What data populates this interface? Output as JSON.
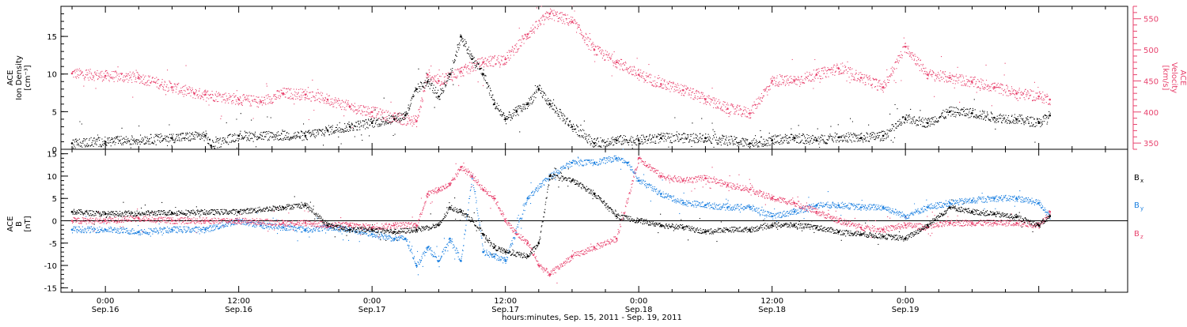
{
  "chart_data": [
    {
      "type": "scatter",
      "panel": "top",
      "left_axis": {
        "title_lines": [
          "ACE",
          "Ion Density",
          "[cm⁻³]"
        ],
        "ylim": [
          0,
          19
        ],
        "ticks": [
          0,
          5,
          10,
          15
        ],
        "tick_labels": [
          "0",
          "5",
          "10",
          "15"
        ]
      },
      "right_axis": {
        "title_lines": [
          "ACE",
          "Velocity",
          "[km/s]"
        ],
        "ylim": [
          340,
          570
        ],
        "ticks": [
          350,
          400,
          450,
          500,
          550
        ],
        "tick_labels": [
          "350",
          "400",
          "450",
          "500",
          "550"
        ]
      },
      "colors": {
        "density": "#000000",
        "velocity": "#e8436e"
      },
      "series": [
        {
          "key": "density",
          "axis": "left",
          "x_hours": [
            -3,
            0,
            6,
            9,
            9.5,
            12,
            18,
            20,
            22,
            24,
            26,
            27,
            28,
            29,
            30,
            31,
            32,
            33,
            34,
            35,
            36,
            37,
            38,
            39,
            40,
            42,
            44,
            46,
            48,
            50,
            54,
            58,
            60,
            62,
            64,
            66,
            68,
            70,
            72,
            74,
            76,
            78,
            80,
            82,
            84,
            85
          ],
          "values": [
            0.8,
            1,
            1.5,
            1.8,
            0.5,
            1.8,
            1.8,
            2.5,
            3,
            3.5,
            4,
            4.5,
            8,
            9,
            7,
            10,
            15,
            12,
            10,
            6,
            4,
            5,
            6,
            8,
            6,
            3,
            0.8,
            1.2,
            1.2,
            1.5,
            1.5,
            0.8,
            1.2,
            1.5,
            1.2,
            1.6,
            1.5,
            1.8,
            4,
            3.5,
            5,
            4.8,
            4.2,
            4,
            3.5,
            4.5
          ]
        },
        {
          "key": "velocity",
          "axis": "right",
          "x_hours": [
            -3,
            0,
            3,
            6,
            8,
            9,
            12,
            14,
            16,
            18,
            20,
            22,
            24,
            26,
            28,
            29,
            30,
            32,
            34,
            36,
            38,
            40,
            42,
            44,
            46,
            48,
            50,
            52,
            54,
            56,
            58,
            60,
            62,
            64,
            66,
            68,
            70,
            72,
            74,
            76,
            78,
            80,
            82,
            84,
            85
          ],
          "values": [
            462,
            458,
            455,
            440,
            430,
            428,
            420,
            416,
            430,
            428,
            420,
            408,
            400,
            390,
            385,
            460,
            450,
            465,
            480,
            485,
            525,
            558,
            545,
            500,
            480,
            460,
            445,
            435,
            420,
            405,
            398,
            450,
            450,
            460,
            470,
            455,
            440,
            505,
            460,
            455,
            448,
            440,
            430,
            425,
            420
          ]
        }
      ]
    },
    {
      "type": "scatter",
      "panel": "bottom",
      "left_axis": {
        "title_lines": [
          "ACE",
          "B",
          "[nT]"
        ],
        "ylim": [
          -16,
          16
        ],
        "ticks": [
          -15,
          -10,
          -5,
          0,
          5,
          10,
          15
        ],
        "tick_labels": [
          "-15",
          "-10",
          "-5",
          "0",
          "5",
          "10",
          "15"
        ]
      },
      "zero_line": 0,
      "legend": {
        "placement": "right",
        "items": [
          {
            "label": "B",
            "sub": "x",
            "color": "#000000"
          },
          {
            "label": "B",
            "sub": "y",
            "color": "#1a7fe0"
          },
          {
            "label": "B",
            "sub": "z",
            "color": "#e8436e"
          }
        ]
      },
      "series": [
        {
          "key": "bx",
          "color": "#000000",
          "x_hours": [
            -3,
            0,
            6,
            12,
            16,
            18,
            20,
            22,
            24,
            26,
            28,
            30,
            31,
            32,
            33,
            34,
            35,
            36,
            38,
            39,
            40,
            42,
            44,
            46,
            48,
            50,
            52,
            54,
            56,
            58,
            60,
            62,
            64,
            66,
            68,
            70,
            72,
            74,
            76,
            78,
            80,
            82,
            84,
            85
          ],
          "values": [
            2,
            1.5,
            1.8,
            2,
            3,
            3.5,
            -1,
            -2,
            -2,
            -2.5,
            -2,
            -1,
            3,
            2,
            0,
            -3,
            -6,
            -7,
            -8,
            -5,
            10,
            9,
            6,
            1,
            0,
            -1,
            -1.5,
            -2.5,
            -2,
            -2,
            -1,
            -1,
            -1.5,
            -2.5,
            -3,
            -3.5,
            -4,
            -1,
            3,
            2,
            1.5,
            0.8,
            -1,
            1
          ]
        },
        {
          "key": "by",
          "color": "#1a7fe0",
          "x_hours": [
            -3,
            0,
            3,
            6,
            9,
            12,
            14,
            16,
            18,
            20,
            22,
            24,
            26,
            27,
            28,
            29,
            30,
            31,
            32,
            33,
            34,
            35,
            36,
            38,
            40,
            42,
            44,
            46,
            47,
            48,
            50,
            52,
            54,
            56,
            58,
            60,
            62,
            64,
            66,
            68,
            70,
            72,
            74,
            76,
            78,
            80,
            82,
            84,
            85
          ],
          "values": [
            -2,
            -2,
            -2.5,
            -2,
            -2,
            0,
            -1,
            -1.5,
            -2,
            -1.5,
            -2,
            -3,
            -4,
            -4,
            -10,
            -6,
            -9,
            -4,
            -9,
            10,
            -7,
            -8,
            -9,
            5,
            10,
            13,
            13,
            14,
            13,
            9,
            6,
            4,
            3.5,
            3,
            3,
            1,
            2,
            3.5,
            3.5,
            3,
            3,
            1,
            3,
            4,
            4.5,
            5,
            5,
            4,
            1
          ]
        },
        {
          "key": "bz",
          "color": "#e8436e",
          "x_hours": [
            -3,
            0,
            3,
            6,
            9,
            12,
            16,
            18,
            20,
            22,
            24,
            26,
            28,
            29,
            30,
            31,
            32,
            33,
            34,
            35,
            36,
            37,
            38,
            39,
            40,
            42,
            44,
            46,
            48,
            50,
            52,
            54,
            56,
            58,
            60,
            62,
            64,
            66,
            68,
            70,
            72,
            74,
            76,
            78,
            80,
            82,
            84,
            85
          ],
          "values": [
            0,
            0,
            0.5,
            0,
            0,
            0,
            -0.5,
            -0.5,
            -1,
            -1,
            -1.5,
            -1,
            -1,
            6,
            7,
            8,
            12,
            10,
            7,
            5,
            0,
            -3,
            -5,
            -10,
            -12,
            -8,
            -6,
            -4,
            14,
            10,
            9,
            9.5,
            8,
            7,
            5,
            4,
            2,
            0,
            -1.5,
            -2,
            -1,
            -1.5,
            -0.5,
            -0.5,
            -0.5,
            -0.5,
            -1,
            2
          ]
        }
      ]
    }
  ],
  "x_axis": {
    "range_hours": [
      -4,
      92
    ],
    "ticks": [
      {
        "hour": 0,
        "time": "0:00",
        "date": "Sep.16"
      },
      {
        "hour": 12,
        "time": "12:00",
        "date": "Sep.16"
      },
      {
        "hour": 24,
        "time": "0:00",
        "date": "Sep.17"
      },
      {
        "hour": 36,
        "time": "12:00",
        "date": "Sep.17"
      },
      {
        "hour": 48,
        "time": "0:00",
        "date": "Sep.18"
      },
      {
        "hour": 60,
        "time": "12:00",
        "date": "Sep.18"
      },
      {
        "hour": 72,
        "time": "0:00",
        "date": "Sep.19"
      }
    ],
    "xlabel": "hours:minutes, Sep. 15, 2011 - Sep. 19, 2011"
  }
}
